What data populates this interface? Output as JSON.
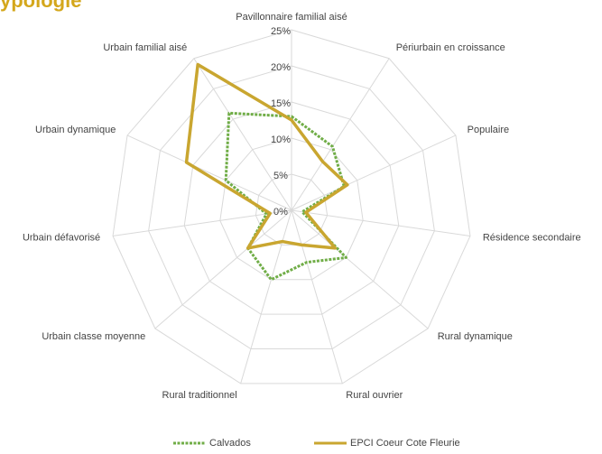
{
  "chart_data": {
    "type": "radar",
    "title": "ypologie",
    "categories": [
      "Pavillonnaire familial aisé",
      "Périurbain en croissance",
      "Populaire",
      "Résidence secondaire",
      "Rural dynamique",
      "Rural ouvrier",
      "Rural traditionnel",
      "Urbain classe moyenne",
      "Urbain défavorisé",
      "Urbain dynamique",
      "Urbain familial aisé"
    ],
    "series": [
      {
        "name": "Calvados",
        "color": "#70ad47",
        "dash": true,
        "values": [
          13,
          10.5,
          8,
          1.5,
          10,
          7.5,
          10,
          8,
          3.5,
          10,
          16
        ]
      },
      {
        "name": "EPCI Coeur Cote Fleurie",
        "color": "#c9a630",
        "dash": false,
        "values": [
          12.5,
          8,
          8.5,
          2,
          8,
          5,
          4.5,
          8,
          3,
          16,
          24
        ]
      }
    ],
    "ylim": [
      0,
      25
    ],
    "yticks": [
      {
        "value": 0,
        "label": "0%"
      },
      {
        "value": 5,
        "label": "5%"
      },
      {
        "value": 10,
        "label": "10%"
      },
      {
        "value": 15,
        "label": "15%"
      },
      {
        "value": 20,
        "label": "20%"
      },
      {
        "value": 25,
        "label": "25%"
      }
    ],
    "grid": true,
    "legend": "bottom"
  }
}
